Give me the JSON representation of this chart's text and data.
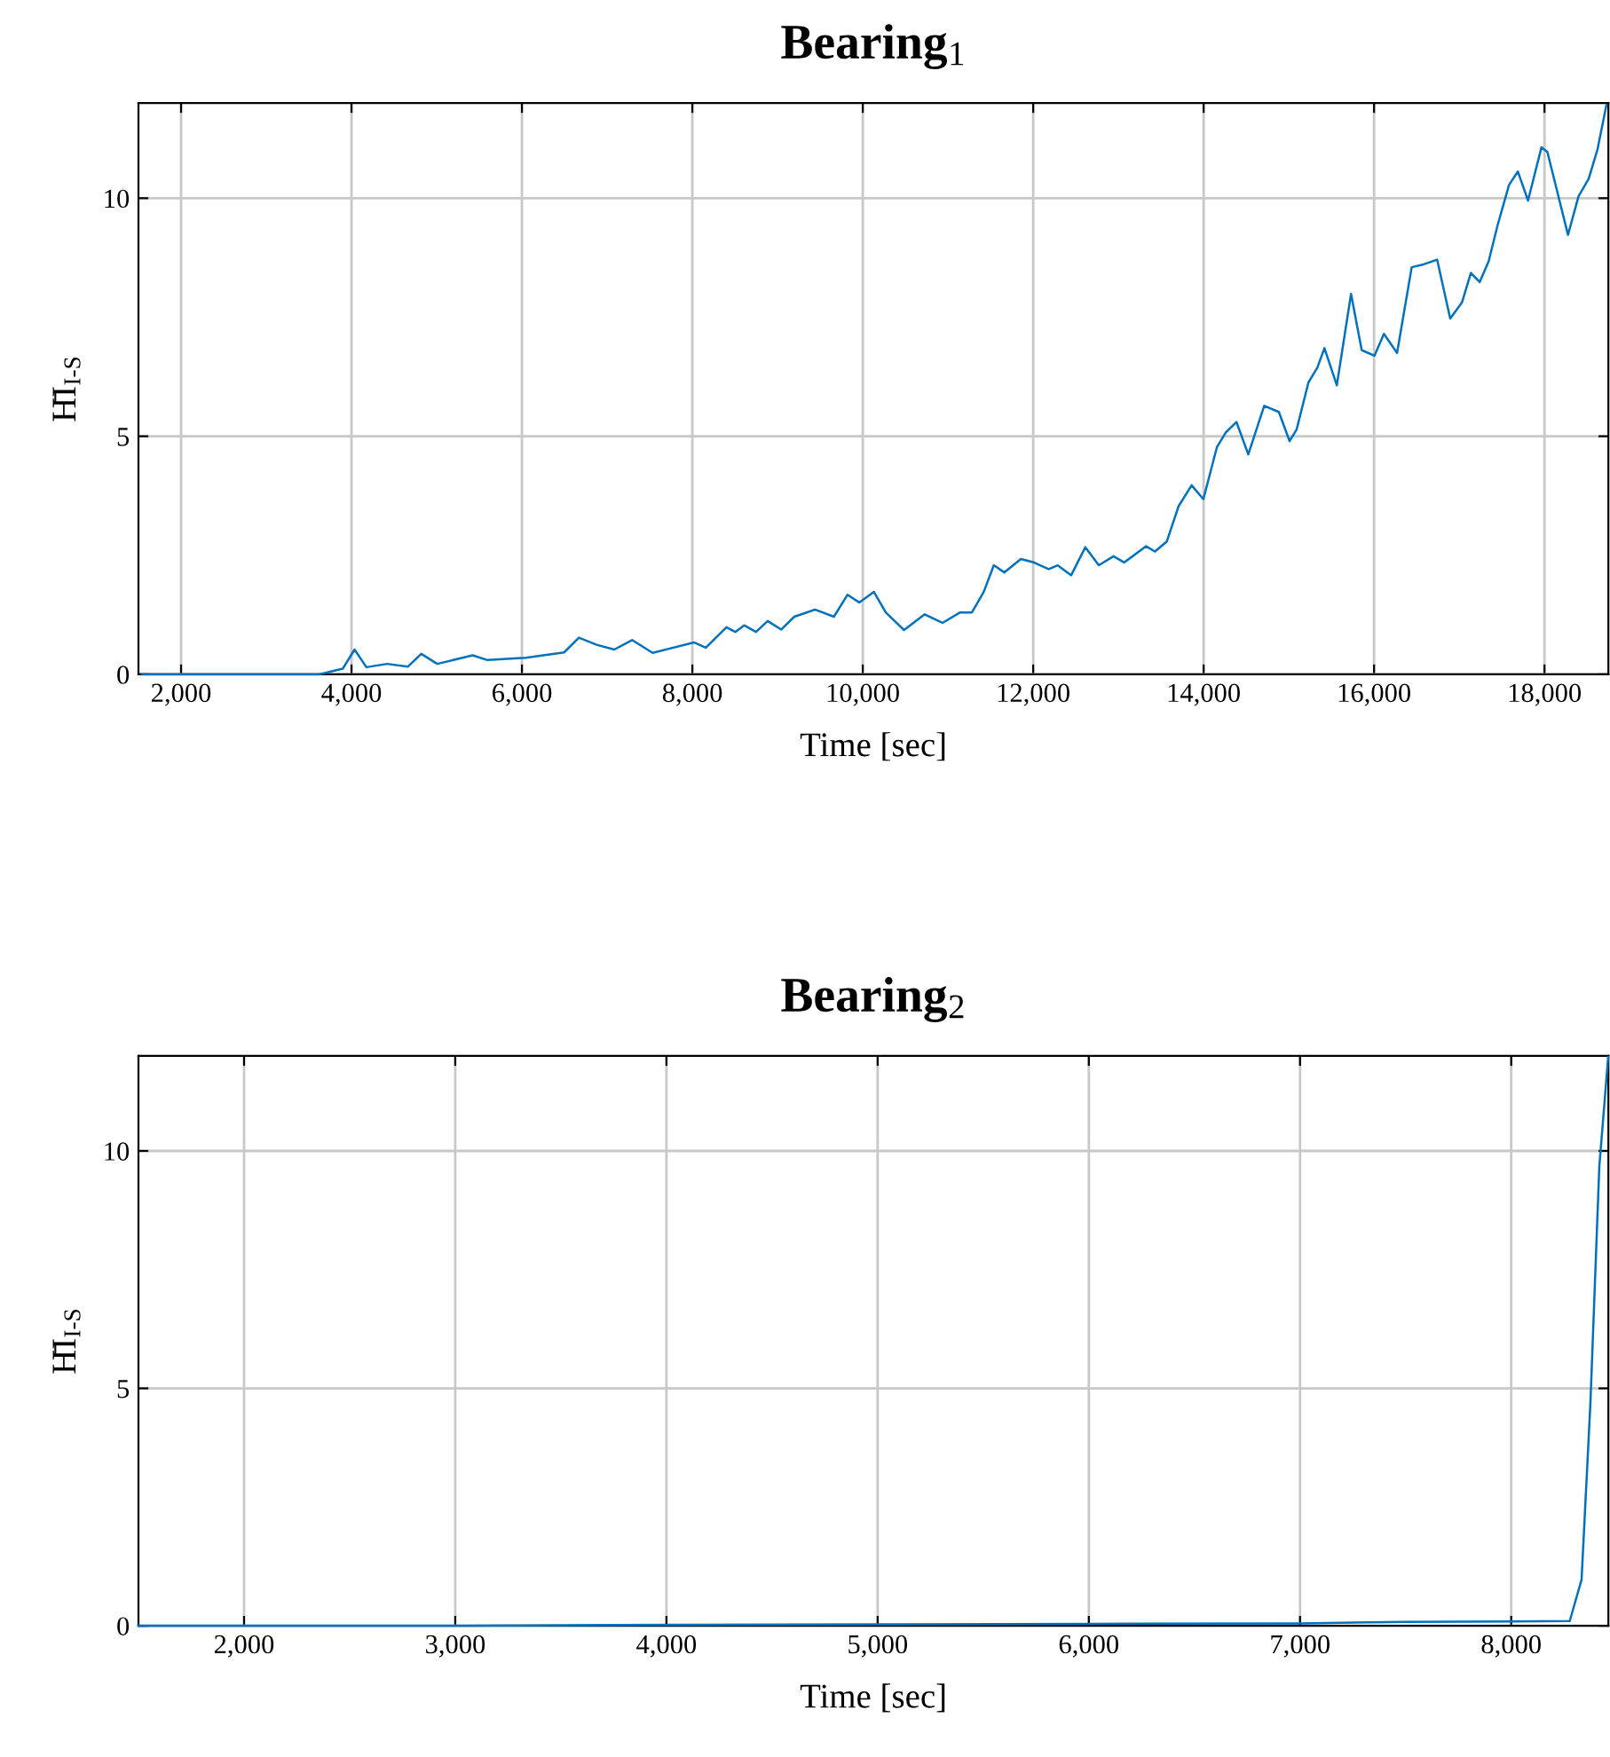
{
  "chart_data": [
    {
      "type": "line",
      "title": "Bearing$_{1}$",
      "xlabel": "Time [sec]",
      "ylabel": "H̄I$_{I-S}$",
      "xlim": [
        1500,
        18750
      ],
      "ylim": [
        0,
        12
      ],
      "xticks": [
        {
          "value": 2000,
          "label": "2,000"
        },
        {
          "value": 4000,
          "label": "4,000"
        },
        {
          "value": 6000,
          "label": "6,000"
        },
        {
          "value": 8000,
          "label": "8,000"
        },
        {
          "value": 10000,
          "label": "10,000"
        },
        {
          "value": 12000,
          "label": "12,000"
        },
        {
          "value": 14000,
          "label": "14,000"
        },
        {
          "value": 16000,
          "label": "16,000"
        },
        {
          "value": 18000,
          "label": "18,000"
        }
      ],
      "yticks": [
        0,
        5,
        10
      ],
      "grid": true,
      "marker": "none",
      "line_style": "solid",
      "series": [
        {
          "color": "#0072bd",
          "x": [
            1543,
            3620,
            3898,
            4036,
            4175,
            4418,
            4660,
            4819,
            5006,
            5422,
            5595,
            6045,
            6495,
            6669,
            6877,
            7084,
            7293,
            7534,
            8019,
            8158,
            8400,
            8504,
            8608,
            8747,
            8884,
            9044,
            9196,
            9439,
            9661,
            9820,
            9958,
            10131,
            10270,
            10484,
            10727,
            10935,
            11143,
            11281,
            11419,
            11538,
            11662,
            11855,
            12008,
            12182,
            12286,
            12445,
            12612,
            12770,
            12943,
            13068,
            13325,
            13429,
            13568,
            13706,
            13859,
            13997,
            14156,
            14260,
            14385,
            14524,
            14711,
            14883,
            15008,
            15091,
            15230,
            15334,
            15418,
            15563,
            15730,
            15855,
            16004,
            16116,
            16270,
            16442,
            16582,
            16740,
            16894,
            17032,
            17136,
            17240,
            17344,
            17448,
            17584,
            17688,
            17807,
            17965,
            18034,
            18276,
            18400,
            18519,
            18623,
            18727
          ],
          "values": [
            0,
            0,
            0.12,
            0.52,
            0.15,
            0.22,
            0.16,
            0.43,
            0.22,
            0.4,
            0.3,
            0.35,
            0.46,
            0.77,
            0.62,
            0.52,
            0.72,
            0.45,
            0.67,
            0.56,
            0.99,
            0.89,
            1.03,
            0.89,
            1.12,
            0.94,
            1.21,
            1.36,
            1.21,
            1.67,
            1.51,
            1.73,
            1.3,
            0.93,
            1.26,
            1.08,
            1.3,
            1.3,
            1.73,
            2.29,
            2.14,
            2.42,
            2.35,
            2.21,
            2.29,
            2.08,
            2.67,
            2.29,
            2.48,
            2.35,
            2.69,
            2.58,
            2.79,
            3.53,
            3.97,
            3.68,
            4.77,
            5.08,
            5.3,
            4.62,
            5.64,
            5.51,
            4.9,
            5.14,
            6.13,
            6.44,
            6.85,
            6.07,
            7.99,
            6.81,
            6.69,
            7.15,
            6.75,
            8.55,
            8.61,
            8.71,
            7.47,
            7.81,
            8.43,
            8.24,
            8.67,
            9.42,
            10.28,
            10.56,
            9.95,
            11.07,
            10.97,
            9.23,
            10.04,
            10.41,
            11.03,
            11.96
          ]
        }
      ]
    },
    {
      "type": "line",
      "title": "Bearing$_{2}$",
      "xlabel": "Time [sec]",
      "ylabel": "H̄I$_{I-S}$",
      "xlim": [
        1500,
        8460
      ],
      "ylim": [
        0,
        12
      ],
      "xticks": [
        {
          "value": 2000,
          "label": "2,000"
        },
        {
          "value": 3000,
          "label": "3,000"
        },
        {
          "value": 4000,
          "label": "4,000"
        },
        {
          "value": 5000,
          "label": "5,000"
        },
        {
          "value": 6000,
          "label": "6,000"
        },
        {
          "value": 7000,
          "label": "7,000"
        },
        {
          "value": 8000,
          "label": "8,000"
        }
      ],
      "yticks": [
        0,
        5,
        10
      ],
      "grid": true,
      "marker": "none",
      "line_style": "solid",
      "series": [
        {
          "color": "#0072bd",
          "x": [
            1500,
            3000,
            4000,
            5000,
            6000,
            7000,
            7500,
            8000,
            8277,
            8333,
            8375,
            8417,
            8459
          ],
          "values": [
            0,
            0,
            0.02,
            0.03,
            0.04,
            0.05,
            0.08,
            0.09,
            0.1,
            0.97,
            4.7,
            9.67,
            11.98
          ]
        }
      ]
    }
  ]
}
